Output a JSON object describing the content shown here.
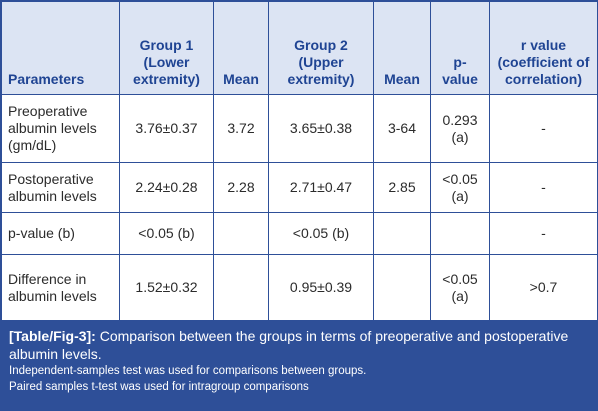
{
  "table": {
    "headers": [
      "Parameters",
      "Group 1 (Lower extremity)",
      "Mean",
      "Group 2 (Upper extremity)",
      "Mean",
      "p-value",
      "r value (coefficient of correlation)"
    ],
    "rows": [
      [
        "Preoperative albumin levels (gm/dL)",
        "3.76±0.37",
        "3.72",
        "3.65±0.38",
        "3-64",
        "0.293 (a)",
        "-"
      ],
      [
        "Postoperative albumin levels",
        "2.24±0.28",
        "2.28",
        "2.71±0.47",
        "2.85",
        "<0.05 (a)",
        "-"
      ],
      [
        "p-value (b)",
        "<0.05 (b)",
        "",
        "<0.05 (b)",
        "",
        "",
        "-"
      ],
      [
        "Difference in albumin levels",
        "1.52±0.32",
        "",
        "0.95±0.39",
        "",
        "<0.05 (a)",
        ">0.7"
      ]
    ]
  },
  "caption": {
    "label": "[Table/Fig-3]:",
    "text": " Comparison between the groups in terms of preoperative and postoperative albumin levels.",
    "notes": [
      "Independent-samples test was used for comparisons between groups.",
      "Paired samples t-test was used for intragroup comparisons"
    ]
  },
  "colors": {
    "accent": "#2e4f98",
    "header_bg": "#dce4f3",
    "header_text": "#1f4493"
  }
}
